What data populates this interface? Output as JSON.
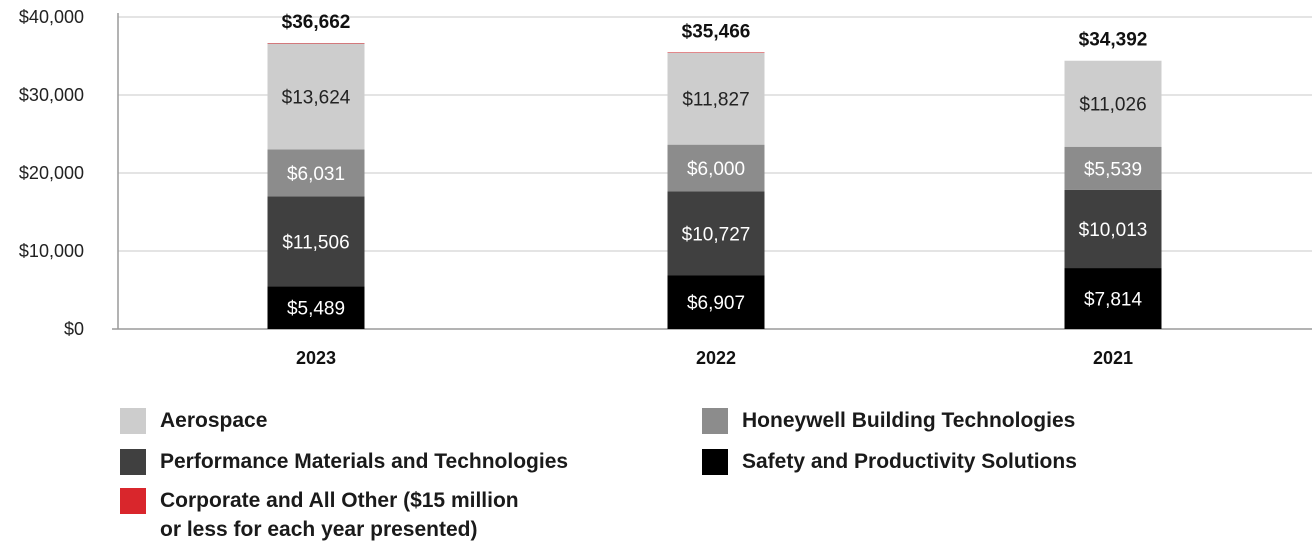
{
  "chart_data": {
    "type": "bar",
    "stacked": true,
    "categories": [
      "2023",
      "2022",
      "2021"
    ],
    "series": [
      {
        "name": "Safety and Productivity Solutions",
        "color": "#000000",
        "label_color": "#ffffff",
        "values": [
          5489,
          6907,
          7814
        ],
        "labels": [
          "$5,489",
          "$6,907",
          "$7,814"
        ]
      },
      {
        "name": "Performance Materials and Technologies",
        "color": "#404040",
        "label_color": "#ffffff",
        "values": [
          11506,
          10727,
          10013
        ],
        "labels": [
          "$11,506",
          "$10,727",
          "$10,013"
        ]
      },
      {
        "name": "Honeywell Building Technologies",
        "color": "#8c8c8c",
        "label_color": "#ffffff",
        "values": [
          6031,
          6000,
          5539
        ],
        "labels": [
          "$6,031",
          "$6,000",
          "$5,539"
        ]
      },
      {
        "name": "Aerospace",
        "color": "#cdcdcd",
        "label_color": "#222222",
        "values": [
          13624,
          11827,
          11026
        ],
        "labels": [
          "$13,624",
          "$11,827",
          "$11,026"
        ]
      },
      {
        "name": "Corporate and All Other ($15 million\nor less for each year presented)",
        "color": "#d9262c",
        "label_color": "#ffffff",
        "values": [
          12,
          5,
          0
        ],
        "labels": [
          "",
          "",
          ""
        ]
      }
    ],
    "totals": [
      "$36,662",
      "$35,466",
      "$34,392"
    ],
    "total_values": [
      36662,
      35466,
      34392
    ],
    "ylim": [
      0,
      40000
    ],
    "yticks": [
      0,
      10000,
      20000,
      30000,
      40000
    ],
    "ytick_labels": [
      "$0",
      "$10,000",
      "$20,000",
      "$30,000",
      "$40,000"
    ],
    "grid": true,
    "legend_position": "bottom"
  },
  "legend": {
    "items": [
      {
        "label": "Aerospace",
        "color": "#cdcdcd"
      },
      {
        "label": "Honeywell Building Technologies",
        "color": "#8c8c8c"
      },
      {
        "label": "Performance Materials and Technologies",
        "color": "#404040"
      },
      {
        "label": "Safety and Productivity Solutions",
        "color": "#000000"
      },
      {
        "label": "Corporate and All Other ($15 million\nor less for each year presented)",
        "color": "#d9262c"
      }
    ]
  }
}
